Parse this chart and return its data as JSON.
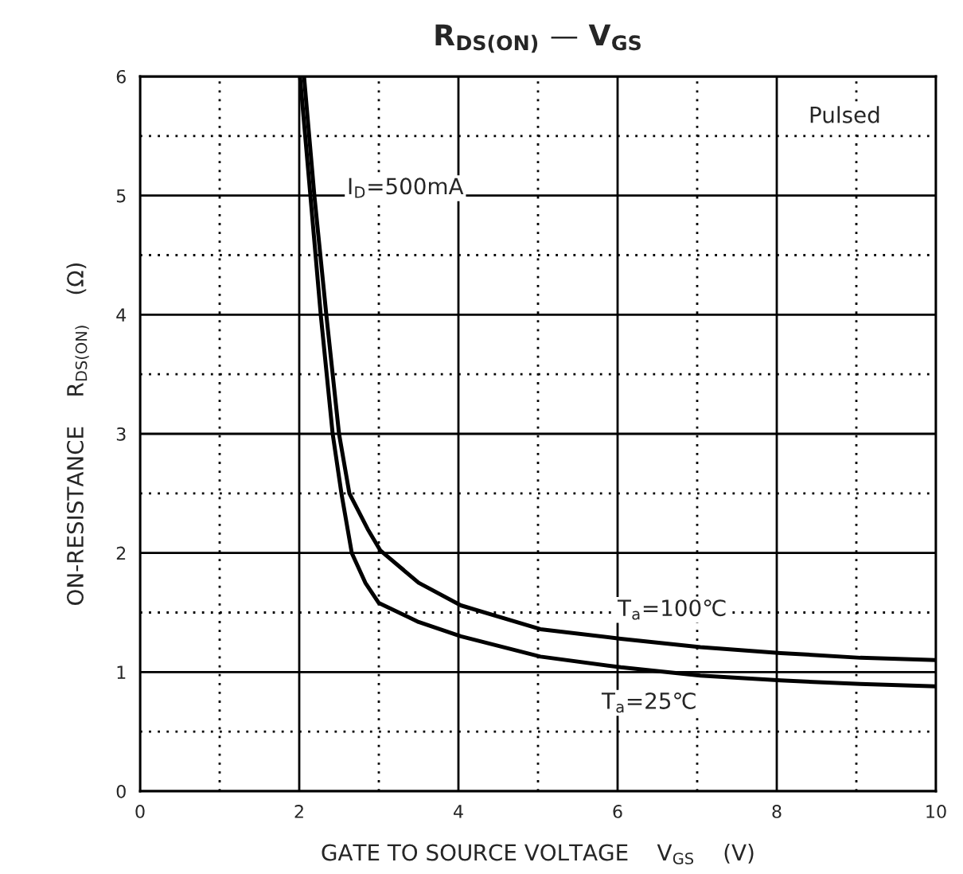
{
  "chart_data": {
    "type": "line",
    "title": "R$_{DS(ON)}$ — V$_{GS}$",
    "xlabel": "GATE TO SOURCE VOLTAGE    V$_{GS}$    (V)",
    "ylabel": "ON-RESISTANCE    R$_{DS(ON)}$    (Ω)",
    "series": [
      {
        "name": "T$_{a}$=100℃",
        "color": "#000000",
        "x": [
          2.06,
          2.19,
          2.34,
          2.5,
          2.63,
          2.86,
          3.02,
          3.5,
          4.03,
          5.03,
          6.04,
          7.04,
          8.05,
          9.05,
          10
        ],
        "values": [
          6,
          5,
          4,
          3,
          2.5,
          2.2,
          2.02,
          1.75,
          1.56,
          1.36,
          1.28,
          1.21,
          1.16,
          1.12,
          1.1
        ]
      },
      {
        "name": "T$_{a}$=25℃",
        "color": "#000000",
        "x": [
          2.01,
          2.14,
          2.27,
          2.42,
          2.53,
          2.66,
          2.83,
          3.0,
          3.5,
          4.03,
          5.03,
          6.04,
          7.04,
          8.05,
          9.05,
          10
        ],
        "values": [
          6,
          5,
          4,
          3,
          2.5,
          2,
          1.75,
          1.58,
          1.42,
          1.3,
          1.13,
          1.04,
          0.97,
          0.93,
          0.9,
          0.88
        ]
      }
    ],
    "annotations": [
      "Pulsed",
      "I$_{D}$=500mA"
    ],
    "xlim": [
      0,
      10
    ],
    "ylim": [
      0,
      6
    ],
    "xticks": [
      0,
      2,
      4,
      6,
      8,
      10
    ],
    "yticks": [
      0,
      1,
      2,
      3,
      4,
      5,
      6
    ],
    "grid": true,
    "legend": false,
    "marker": "none",
    "line_style": "solid"
  }
}
